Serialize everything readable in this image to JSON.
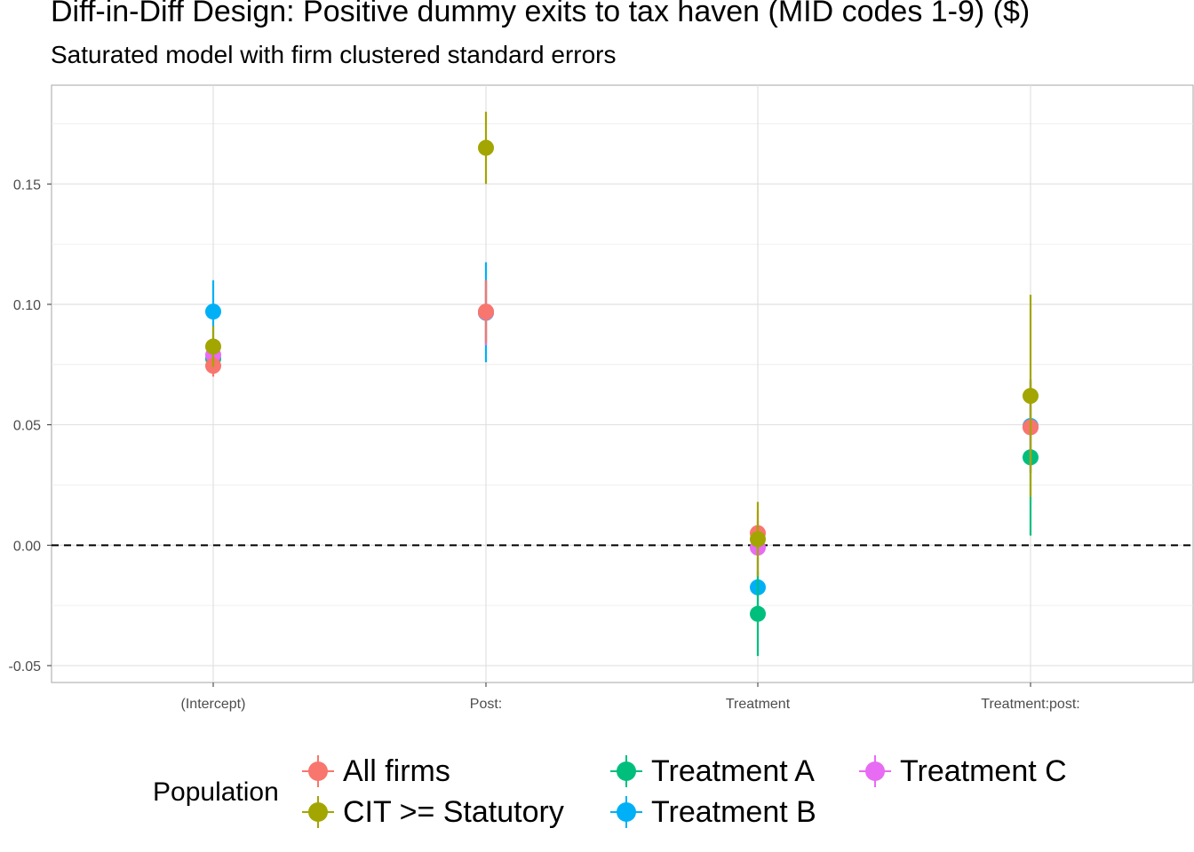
{
  "chart_data": {
    "type": "scatter",
    "title": "Diff-in-Diff Design: Positive dummy exits to tax haven (MID codes 1-9)  ($)",
    "subtitle": "Saturated model with firm clustered standard errors",
    "xlabel": "",
    "ylabel": "",
    "categories": [
      "(Intercept)",
      "Post:",
      "Treatment",
      "Treatment:post:"
    ],
    "ylim": [
      -0.057,
      0.191
    ],
    "yticks": [
      -0.05,
      0.0,
      0.05,
      0.1,
      0.15
    ],
    "ytick_labels": [
      "-0.05",
      "0.00",
      "0.05",
      "0.10",
      "0.15"
    ],
    "reference_line": {
      "y": 0,
      "style": "dashed"
    },
    "grid": true,
    "legend_title": "Population",
    "legend_position": "bottom",
    "series": [
      {
        "name": "All firms",
        "color": "#F8766D",
        "values": [
          0.0745,
          0.097,
          0.005,
          0.049
        ],
        "lower": [
          0.07,
          0.084,
          -0.004,
          0.03
        ],
        "upper": [
          0.079,
          0.11,
          0.014,
          0.068
        ]
      },
      {
        "name": "CIT >= Statutory",
        "color": "#A3A500",
        "values": [
          0.0825,
          0.165,
          0.0025,
          0.062
        ],
        "lower": [
          0.074,
          0.15,
          -0.013,
          0.02
        ],
        "upper": [
          0.091,
          0.18,
          0.018,
          0.104
        ]
      },
      {
        "name": "Treatment A",
        "color": "#00BF7D",
        "values": [
          0.0775,
          0.0965,
          -0.0285,
          0.0365
        ],
        "lower": [
          0.072,
          0.083,
          -0.046,
          0.004
        ],
        "upper": [
          0.083,
          0.11,
          -0.011,
          0.069
        ]
      },
      {
        "name": "Treatment B",
        "color": "#00B0F6",
        "values": [
          0.097,
          0.0968,
          -0.0175,
          0.0495
        ],
        "lower": [
          0.084,
          0.076,
          -0.03,
          0.03
        ],
        "upper": [
          0.11,
          0.1175,
          -0.005,
          0.069
        ]
      },
      {
        "name": "Treatment C",
        "color": "#E76BF3",
        "values": [
          0.079,
          0.0967,
          -0.001,
          0.049
        ],
        "lower": [
          0.073,
          0.083,
          -0.012,
          0.03
        ],
        "upper": [
          0.085,
          0.11,
          0.01,
          0.068
        ]
      }
    ]
  }
}
